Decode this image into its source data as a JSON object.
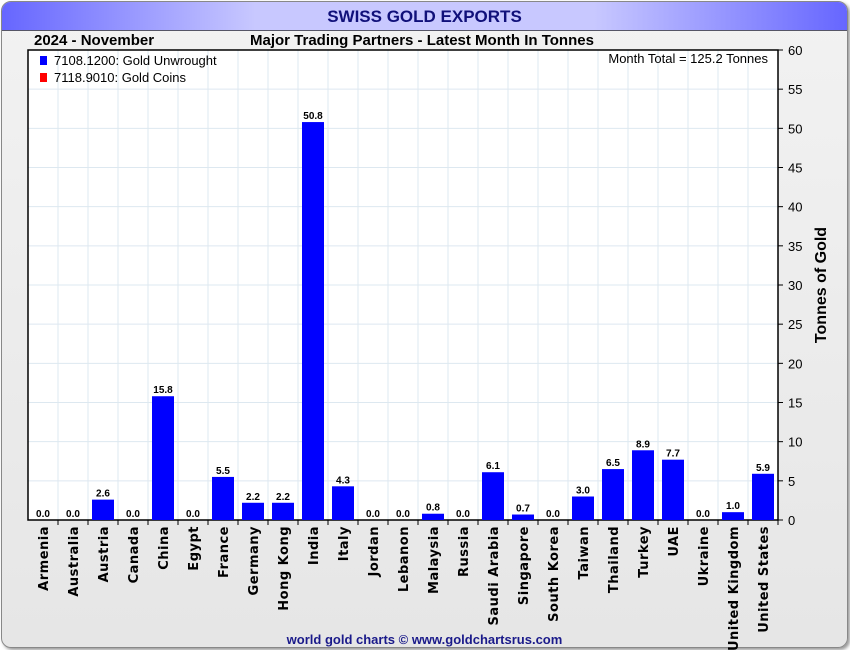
{
  "header": {
    "title": "SWISS GOLD EXPORTS",
    "period": "2024 - November",
    "subtitle": "Major Trading Partners - Latest Month In Tonnes"
  },
  "footer": "world gold charts © www.goldchartsrus.com",
  "chart_data": {
    "type": "bar",
    "title": "SWISS GOLD EXPORTS",
    "ylabel": "Tonnes of Gold",
    "xlabel": "",
    "ylim": [
      0,
      60
    ],
    "yticks": [
      0,
      5,
      10,
      15,
      20,
      25,
      30,
      35,
      40,
      45,
      50,
      55,
      60
    ],
    "annotation": "Month Total = 125.2 Tonnes",
    "legend": [
      {
        "label": "7108.1200: Gold Unwrought",
        "color": "#0000ff"
      },
      {
        "label": "7118.9010: Gold Coins",
        "color": "#ff0000"
      }
    ],
    "categories": [
      "Armenia",
      "Australia",
      "Austria",
      "Canada",
      "China",
      "Egypt",
      "France",
      "Germany",
      "Hong Kong",
      "India",
      "Italy",
      "Jordan",
      "Lebanon",
      "Malaysia",
      "Russia",
      "Saudi Arabia",
      "Singapore",
      "South Korea",
      "Taiwan",
      "Thailand",
      "Turkey",
      "UAE",
      "Ukraine",
      "United Kingdom",
      "United States"
    ],
    "series": [
      {
        "name": "7108.1200: Gold Unwrought",
        "values": [
          0.0,
          0.0,
          2.6,
          0.0,
          15.8,
          0.0,
          5.5,
          2.2,
          2.2,
          50.8,
          4.3,
          0.0,
          0.0,
          0.8,
          0.0,
          6.1,
          0.7,
          0.0,
          3.0,
          6.5,
          8.9,
          7.7,
          0.0,
          1.0,
          5.9
        ]
      }
    ],
    "data_labels": [
      "0.0",
      "0.0",
      "2.6",
      "0.0",
      "15.8",
      "0.0",
      "5.5",
      "2.2",
      "2.2",
      "50.8",
      "4.3",
      "0.0",
      "0.0",
      "0.8",
      "0.0",
      "6.1",
      "0.7",
      "0.0",
      "3.0",
      "6.5",
      "8.9",
      "7.7",
      "0.0",
      "1.0",
      "5.9"
    ]
  }
}
